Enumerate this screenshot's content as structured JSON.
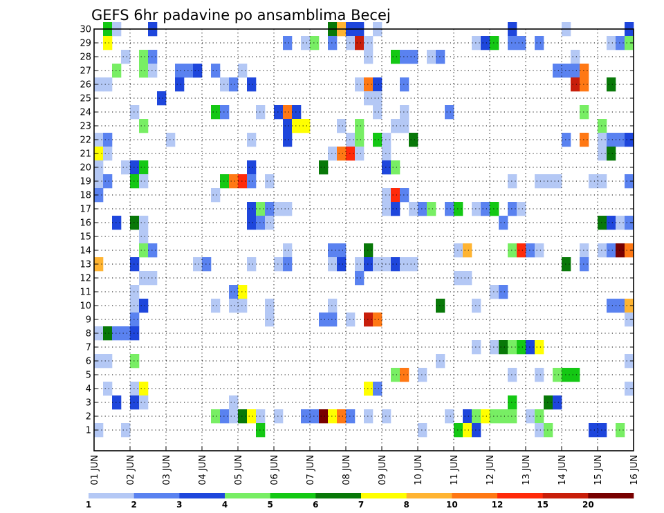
{
  "chart_data": {
    "type": "heatmap",
    "title": "GEFS 6hr padavine po ansamblima Becej",
    "xlabel": "",
    "ylabel": "",
    "x_tick_labels": [
      "01 JUN",
      "02 JUN",
      "03 JUN",
      "04 JUN",
      "05 JUN",
      "06 JUN",
      "07 JUN",
      "08 JUN",
      "09 JUN",
      "10 JUN",
      "11 JUN",
      "12 JUN",
      "13 JUN",
      "14 JUN",
      "15 JUN",
      "16 JUN"
    ],
    "y_tick_labels": [
      "1",
      "2",
      "3",
      "4",
      "5",
      "6",
      "7",
      "8",
      "9",
      "10",
      "11",
      "12",
      "13",
      "14",
      "15",
      "16",
      "17",
      "18",
      "19",
      "20",
      "21",
      "22",
      "23",
      "24",
      "25",
      "26",
      "27",
      "28",
      "29",
      "30"
    ],
    "x_range_days": [
      0,
      15
    ],
    "y_range_members": [
      0,
      30
    ],
    "grid": true,
    "colorbar": {
      "placement": "bottom",
      "levels": [
        "1",
        "2",
        "3",
        "4",
        "5",
        "6",
        "7",
        "8",
        "10",
        "12",
        "15",
        "20"
      ],
      "colors": [
        "#b4c8f5",
        "#5a82f0",
        "#1e46dc",
        "#78ee64",
        "#14c814",
        "#087808",
        "#ffff00",
        "#ffb432",
        "#ff7814",
        "#ff2a0a",
        "#c81e0a",
        "#780000"
      ]
    },
    "cells": [
      [
        2,
        30,
        5
      ],
      [
        3,
        30,
        1
      ],
      [
        7,
        30,
        3
      ],
      [
        27,
        30,
        6
      ],
      [
        28,
        30,
        8
      ],
      [
        29,
        30,
        3
      ],
      [
        30,
        30,
        3
      ],
      [
        32,
        30,
        1
      ],
      [
        47,
        30,
        3
      ],
      [
        53,
        30,
        1
      ],
      [
        60,
        30,
        3
      ],
      [
        2,
        29,
        7
      ],
      [
        22,
        29,
        2
      ],
      [
        24,
        29,
        1
      ],
      [
        25,
        29,
        4
      ],
      [
        27,
        29,
        2
      ],
      [
        29,
        29,
        1
      ],
      [
        30,
        29,
        11
      ],
      [
        31,
        29,
        1
      ],
      [
        43,
        29,
        1
      ],
      [
        44,
        29,
        3
      ],
      [
        45,
        29,
        5
      ],
      [
        47,
        29,
        2
      ],
      [
        48,
        29,
        2
      ],
      [
        50,
        29,
        2
      ],
      [
        58,
        29,
        1
      ],
      [
        59,
        29,
        2
      ],
      [
        60,
        29,
        4
      ],
      [
        4,
        28,
        1
      ],
      [
        6,
        28,
        4
      ],
      [
        7,
        28,
        2
      ],
      [
        31,
        28,
        1
      ],
      [
        34,
        28,
        5
      ],
      [
        35,
        28,
        2
      ],
      [
        36,
        28,
        2
      ],
      [
        38,
        28,
        1
      ],
      [
        39,
        28,
        2
      ],
      [
        54,
        28,
        1
      ],
      [
        3,
        27,
        4
      ],
      [
        6,
        27,
        4
      ],
      [
        7,
        27,
        1
      ],
      [
        10,
        27,
        2
      ],
      [
        11,
        27,
        2
      ],
      [
        12,
        27,
        3
      ],
      [
        14,
        27,
        2
      ],
      [
        17,
        27,
        1
      ],
      [
        52,
        27,
        2
      ],
      [
        53,
        27,
        2
      ],
      [
        54,
        27,
        2
      ],
      [
        55,
        27,
        9
      ],
      [
        1,
        26,
        1
      ],
      [
        2,
        26,
        1
      ],
      [
        10,
        26,
        3
      ],
      [
        15,
        26,
        1
      ],
      [
        16,
        26,
        2
      ],
      [
        18,
        26,
        3
      ],
      [
        30,
        26,
        1
      ],
      [
        31,
        26,
        9
      ],
      [
        32,
        26,
        3
      ],
      [
        35,
        26,
        2
      ],
      [
        54,
        26,
        11
      ],
      [
        55,
        26,
        9
      ],
      [
        58,
        26,
        6
      ],
      [
        31,
        25,
        1
      ],
      [
        32,
        25,
        1
      ],
      [
        8,
        25,
        3
      ],
      [
        5,
        24,
        1
      ],
      [
        14,
        24,
        5
      ],
      [
        15,
        24,
        2
      ],
      [
        19,
        24,
        1
      ],
      [
        21,
        24,
        3
      ],
      [
        22,
        24,
        9
      ],
      [
        23,
        24,
        3
      ],
      [
        32,
        24,
        1
      ],
      [
        35,
        24,
        1
      ],
      [
        40,
        24,
        2
      ],
      [
        55,
        24,
        4
      ],
      [
        6,
        23,
        4
      ],
      [
        22,
        23,
        3
      ],
      [
        23,
        23,
        7
      ],
      [
        24,
        23,
        7
      ],
      [
        28,
        23,
        1
      ],
      [
        30,
        23,
        4
      ],
      [
        34,
        23,
        1
      ],
      [
        35,
        23,
        1
      ],
      [
        57,
        23,
        4
      ],
      [
        1,
        22,
        1
      ],
      [
        2,
        22,
        2
      ],
      [
        9,
        22,
        1
      ],
      [
        18,
        22,
        1
      ],
      [
        22,
        22,
        3
      ],
      [
        29,
        22,
        1
      ],
      [
        30,
        22,
        4
      ],
      [
        32,
        22,
        5
      ],
      [
        33,
        22,
        1
      ],
      [
        36,
        22,
        6
      ],
      [
        53,
        22,
        2
      ],
      [
        55,
        22,
        9
      ],
      [
        57,
        22,
        1
      ],
      [
        58,
        22,
        2
      ],
      [
        59,
        22,
        2
      ],
      [
        60,
        22,
        3
      ],
      [
        1,
        21,
        7
      ],
      [
        2,
        21,
        1
      ],
      [
        27,
        21,
        1
      ],
      [
        28,
        21,
        9
      ],
      [
        29,
        21,
        10
      ],
      [
        30,
        21,
        1
      ],
      [
        33,
        21,
        1
      ],
      [
        57,
        21,
        1
      ],
      [
        58,
        21,
        6
      ],
      [
        1,
        20,
        1
      ],
      [
        4,
        20,
        1
      ],
      [
        5,
        20,
        3
      ],
      [
        6,
        20,
        5
      ],
      [
        18,
        20,
        3
      ],
      [
        26,
        20,
        6
      ],
      [
        33,
        20,
        3
      ],
      [
        34,
        20,
        4
      ],
      [
        1,
        19,
        1
      ],
      [
        2,
        19,
        2
      ],
      [
        5,
        19,
        5
      ],
      [
        6,
        19,
        1
      ],
      [
        15,
        19,
        5
      ],
      [
        16,
        19,
        9
      ],
      [
        17,
        19,
        10
      ],
      [
        18,
        19,
        2
      ],
      [
        20,
        19,
        1
      ],
      [
        47,
        19,
        1
      ],
      [
        50,
        19,
        1
      ],
      [
        51,
        19,
        1
      ],
      [
        52,
        19,
        1
      ],
      [
        56,
        19,
        1
      ],
      [
        57,
        19,
        1
      ],
      [
        60,
        19,
        2
      ],
      [
        1,
        18,
        2
      ],
      [
        14,
        18,
        1
      ],
      [
        33,
        18,
        1
      ],
      [
        34,
        18,
        10
      ],
      [
        35,
        18,
        2
      ],
      [
        18,
        17,
        3
      ],
      [
        19,
        17,
        4
      ],
      [
        20,
        17,
        2
      ],
      [
        21,
        17,
        1
      ],
      [
        22,
        17,
        1
      ],
      [
        33,
        17,
        1
      ],
      [
        34,
        17,
        3
      ],
      [
        36,
        17,
        1
      ],
      [
        37,
        17,
        2
      ],
      [
        38,
        17,
        4
      ],
      [
        40,
        17,
        2
      ],
      [
        41,
        17,
        5
      ],
      [
        43,
        17,
        1
      ],
      [
        44,
        17,
        2
      ],
      [
        45,
        17,
        5
      ],
      [
        47,
        17,
        2
      ],
      [
        48,
        17,
        1
      ],
      [
        3,
        16,
        3
      ],
      [
        5,
        16,
        6
      ],
      [
        6,
        16,
        1
      ],
      [
        18,
        16,
        3
      ],
      [
        19,
        16,
        2
      ],
      [
        20,
        16,
        1
      ],
      [
        46,
        16,
        2
      ],
      [
        57,
        16,
        6
      ],
      [
        58,
        16,
        3
      ],
      [
        59,
        16,
        1
      ],
      [
        60,
        16,
        2
      ],
      [
        6,
        15,
        1
      ],
      [
        6,
        14,
        4
      ],
      [
        7,
        14,
        2
      ],
      [
        22,
        14,
        1
      ],
      [
        27,
        14,
        2
      ],
      [
        28,
        14,
        2
      ],
      [
        31,
        14,
        6
      ],
      [
        41,
        14,
        1
      ],
      [
        42,
        14,
        8
      ],
      [
        47,
        14,
        4
      ],
      [
        48,
        14,
        10
      ],
      [
        49,
        14,
        2
      ],
      [
        50,
        14,
        1
      ],
      [
        55,
        14,
        1
      ],
      [
        57,
        14,
        1
      ],
      [
        58,
        14,
        2
      ],
      [
        59,
        14,
        12
      ],
      [
        60,
        14,
        9
      ],
      [
        1,
        13,
        8
      ],
      [
        5,
        13,
        3
      ],
      [
        12,
        13,
        1
      ],
      [
        13,
        13,
        2
      ],
      [
        18,
        13,
        1
      ],
      [
        21,
        13,
        1
      ],
      [
        22,
        13,
        2
      ],
      [
        27,
        13,
        1
      ],
      [
        28,
        13,
        3
      ],
      [
        30,
        13,
        1
      ],
      [
        31,
        13,
        3
      ],
      [
        32,
        13,
        1
      ],
      [
        33,
        13,
        1
      ],
      [
        34,
        13,
        3
      ],
      [
        35,
        13,
        1
      ],
      [
        36,
        13,
        1
      ],
      [
        53,
        13,
        6
      ],
      [
        55,
        13,
        2
      ],
      [
        6,
        12,
        1
      ],
      [
        7,
        12,
        1
      ],
      [
        41,
        12,
        1
      ],
      [
        42,
        12,
        1
      ],
      [
        30,
        12,
        2
      ],
      [
        5,
        11,
        1
      ],
      [
        16,
        11,
        2
      ],
      [
        17,
        11,
        7
      ],
      [
        45,
        11,
        1
      ],
      [
        46,
        11,
        2
      ],
      [
        5,
        10,
        1
      ],
      [
        6,
        10,
        3
      ],
      [
        14,
        10,
        1
      ],
      [
        16,
        10,
        1
      ],
      [
        17,
        10,
        1
      ],
      [
        20,
        10,
        1
      ],
      [
        27,
        10,
        1
      ],
      [
        39,
        10,
        6
      ],
      [
        43,
        10,
        1
      ],
      [
        58,
        10,
        2
      ],
      [
        59,
        10,
        2
      ],
      [
        60,
        10,
        8
      ],
      [
        5,
        9,
        2
      ],
      [
        20,
        9,
        1
      ],
      [
        26,
        9,
        2
      ],
      [
        27,
        9,
        2
      ],
      [
        29,
        9,
        1
      ],
      [
        31,
        9,
        11
      ],
      [
        32,
        9,
        9
      ],
      [
        60,
        9,
        1
      ],
      [
        1,
        8,
        1
      ],
      [
        2,
        8,
        6
      ],
      [
        3,
        8,
        2
      ],
      [
        4,
        8,
        2
      ],
      [
        5,
        8,
        3
      ],
      [
        43,
        7,
        1
      ],
      [
        45,
        7,
        1
      ],
      [
        46,
        7,
        6
      ],
      [
        47,
        7,
        4
      ],
      [
        48,
        7,
        5
      ],
      [
        49,
        7,
        3
      ],
      [
        50,
        7,
        7
      ],
      [
        1,
        6,
        1
      ],
      [
        2,
        6,
        1
      ],
      [
        5,
        6,
        4
      ],
      [
        39,
        6,
        1
      ],
      [
        60,
        6,
        1
      ],
      [
        34,
        5,
        4
      ],
      [
        35,
        5,
        9
      ],
      [
        37,
        5,
        1
      ],
      [
        47,
        5,
        1
      ],
      [
        50,
        5,
        1
      ],
      [
        52,
        5,
        4
      ],
      [
        53,
        5,
        5
      ],
      [
        54,
        5,
        5
      ],
      [
        2,
        4,
        1
      ],
      [
        5,
        4,
        1
      ],
      [
        6,
        4,
        7
      ],
      [
        31,
        4,
        7
      ],
      [
        32,
        4,
        2
      ],
      [
        60,
        4,
        1
      ],
      [
        3,
        3,
        3
      ],
      [
        5,
        3,
        3
      ],
      [
        6,
        3,
        1
      ],
      [
        16,
        3,
        1
      ],
      [
        47,
        3,
        5
      ],
      [
        51,
        3,
        6
      ],
      [
        52,
        3,
        3
      ],
      [
        14,
        2,
        4
      ],
      [
        15,
        2,
        2
      ],
      [
        16,
        2,
        1
      ],
      [
        17,
        2,
        6
      ],
      [
        18,
        2,
        7
      ],
      [
        19,
        2,
        1
      ],
      [
        21,
        2,
        1
      ],
      [
        24,
        2,
        2
      ],
      [
        25,
        2,
        2
      ],
      [
        26,
        2,
        12
      ],
      [
        27,
        2,
        7
      ],
      [
        28,
        2,
        9
      ],
      [
        29,
        2,
        2
      ],
      [
        31,
        2,
        1
      ],
      [
        33,
        2,
        1
      ],
      [
        40,
        2,
        1
      ],
      [
        42,
        2,
        3
      ],
      [
        43,
        2,
        4
      ],
      [
        44,
        2,
        7
      ],
      [
        45,
        2,
        4
      ],
      [
        46,
        2,
        4
      ],
      [
        47,
        2,
        4
      ],
      [
        49,
        2,
        1
      ],
      [
        50,
        2,
        4
      ],
      [
        1,
        1,
        1
      ],
      [
        4,
        1,
        1
      ],
      [
        19,
        1,
        5
      ],
      [
        37,
        1,
        1
      ],
      [
        41,
        1,
        5
      ],
      [
        42,
        1,
        7
      ],
      [
        43,
        1,
        3
      ],
      [
        50,
        1,
        1
      ],
      [
        51,
        1,
        4
      ],
      [
        56,
        1,
        3
      ],
      [
        57,
        1,
        3
      ],
      [
        59,
        1,
        4
      ]
    ]
  }
}
